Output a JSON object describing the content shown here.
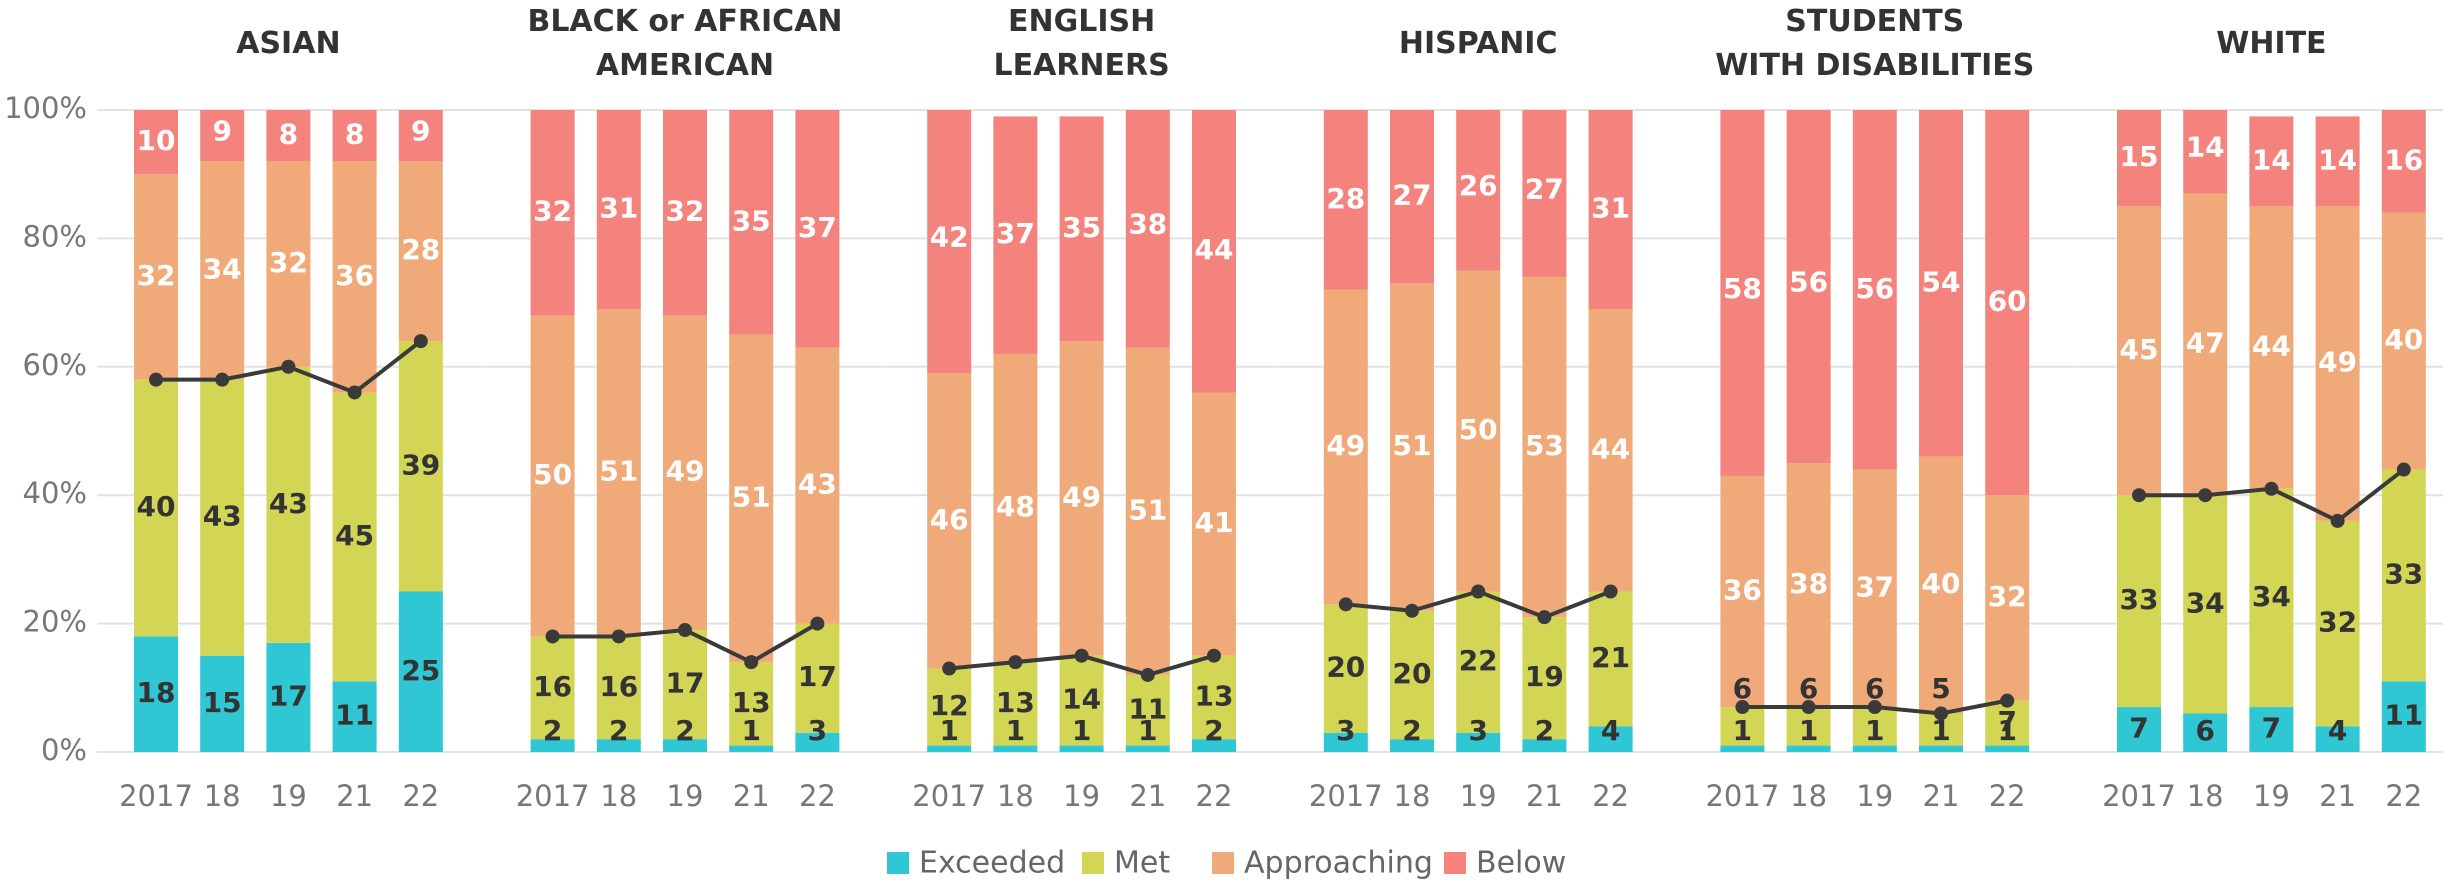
{
  "chart_data": [
    {
      "type": "bar",
      "title": "ASIAN",
      "categories": [
        "2017",
        "18",
        "19",
        "21",
        "22"
      ],
      "ylim": [
        0,
        100
      ],
      "yticks": [
        {
          "value": 0,
          "label": "0%"
        },
        {
          "value": 20,
          "label": "20%"
        },
        {
          "value": 40,
          "label": "40%"
        },
        {
          "value": 60,
          "label": "60%"
        },
        {
          "value": 80,
          "label": "80%"
        },
        {
          "value": 100,
          "label": "100%"
        }
      ],
      "series": [
        {
          "name": "Exceeded",
          "color": "#2ec7d3",
          "values": [
            18,
            15,
            17,
            11,
            25
          ]
        },
        {
          "name": "Met",
          "color": "#d3d655",
          "values": [
            40,
            43,
            43,
            45,
            39
          ]
        },
        {
          "name": "Approaching",
          "color": "#f0aa7a",
          "values": [
            32,
            34,
            32,
            36,
            28
          ]
        },
        {
          "name": "Below",
          "color": "#f4837d",
          "values": [
            10,
            9,
            8,
            8,
            9
          ]
        }
      ]
    },
    {
      "type": "bar",
      "title": "BLACK or AFRICAN\nAMERICAN",
      "categories": [
        "2017",
        "18",
        "19",
        "21",
        "22"
      ],
      "ylim": [
        0,
        100
      ],
      "yticks": [
        {
          "value": 0,
          "label": "0%"
        },
        {
          "value": 20,
          "label": "20%"
        },
        {
          "value": 40,
          "label": "40%"
        },
        {
          "value": 60,
          "label": "60%"
        },
        {
          "value": 80,
          "label": "80%"
        },
        {
          "value": 100,
          "label": "100%"
        }
      ],
      "series": [
        {
          "name": "Exceeded",
          "color": "#2ec7d3",
          "values": [
            2,
            2,
            2,
            1,
            3
          ]
        },
        {
          "name": "Met",
          "color": "#d3d655",
          "values": [
            16,
            16,
            17,
            13,
            17
          ]
        },
        {
          "name": "Approaching",
          "color": "#f0aa7a",
          "values": [
            50,
            51,
            49,
            51,
            43
          ]
        },
        {
          "name": "Below",
          "color": "#f4837d",
          "values": [
            32,
            31,
            32,
            35,
            37
          ]
        }
      ]
    },
    {
      "type": "bar",
      "title": "ENGLISH\nLEARNERS",
      "categories": [
        "2017",
        "18",
        "19",
        "21",
        "22"
      ],
      "ylim": [
        0,
        100
      ],
      "yticks": [
        {
          "value": 0,
          "label": "0%"
        },
        {
          "value": 20,
          "label": "20%"
        },
        {
          "value": 40,
          "label": "40%"
        },
        {
          "value": 60,
          "label": "60%"
        },
        {
          "value": 80,
          "label": "80%"
        },
        {
          "value": 100,
          "label": "100%"
        }
      ],
      "series": [
        {
          "name": "Exceeded",
          "color": "#2ec7d3",
          "values": [
            1,
            1,
            1,
            1,
            2
          ]
        },
        {
          "name": "Met",
          "color": "#d3d655",
          "values": [
            12,
            13,
            14,
            11,
            13
          ]
        },
        {
          "name": "Approaching",
          "color": "#f0aa7a",
          "values": [
            46,
            48,
            49,
            51,
            41
          ]
        },
        {
          "name": "Below",
          "color": "#f4837d",
          "values": [
            42,
            37,
            35,
            38,
            44
          ]
        }
      ]
    },
    {
      "type": "bar",
      "title": "HISPANIC",
      "categories": [
        "2017",
        "18",
        "19",
        "21",
        "22"
      ],
      "ylim": [
        0,
        100
      ],
      "yticks": [
        {
          "value": 0,
          "label": "0%"
        },
        {
          "value": 20,
          "label": "20%"
        },
        {
          "value": 40,
          "label": "40%"
        },
        {
          "value": 60,
          "label": "60%"
        },
        {
          "value": 80,
          "label": "80%"
        },
        {
          "value": 100,
          "label": "100%"
        }
      ],
      "series": [
        {
          "name": "Exceeded",
          "color": "#2ec7d3",
          "values": [
            3,
            2,
            3,
            2,
            4
          ]
        },
        {
          "name": "Met",
          "color": "#d3d655",
          "values": [
            20,
            20,
            22,
            19,
            21
          ]
        },
        {
          "name": "Approaching",
          "color": "#f0aa7a",
          "values": [
            49,
            51,
            50,
            53,
            44
          ]
        },
        {
          "name": "Below",
          "color": "#f4837d",
          "values": [
            28,
            27,
            26,
            27,
            31
          ]
        }
      ]
    },
    {
      "type": "bar",
      "title": "STUDENTS\nWITH DISABILITIES",
      "categories": [
        "2017",
        "18",
        "19",
        "21",
        "22"
      ],
      "ylim": [
        0,
        100
      ],
      "yticks": [
        {
          "value": 0,
          "label": "0%"
        },
        {
          "value": 20,
          "label": "20%"
        },
        {
          "value": 40,
          "label": "40%"
        },
        {
          "value": 60,
          "label": "60%"
        },
        {
          "value": 80,
          "label": "80%"
        },
        {
          "value": 100,
          "label": "100%"
        }
      ],
      "series": [
        {
          "name": "Exceeded",
          "color": "#2ec7d3",
          "values": [
            1,
            1,
            1,
            1,
            1
          ]
        },
        {
          "name": "Met",
          "color": "#d3d655",
          "values": [
            6,
            6,
            6,
            5,
            7
          ]
        },
        {
          "name": "Approaching",
          "color": "#f0aa7a",
          "values": [
            36,
            38,
            37,
            40,
            32
          ]
        },
        {
          "name": "Below",
          "color": "#f4837d",
          "values": [
            58,
            56,
            56,
            54,
            60
          ]
        }
      ]
    },
    {
      "type": "bar",
      "title": "WHITE",
      "categories": [
        "2017",
        "18",
        "19",
        "21",
        "22"
      ],
      "ylim": [
        0,
        100
      ],
      "yticks": [
        {
          "value": 0,
          "label": "0%"
        },
        {
          "value": 20,
          "label": "20%"
        },
        {
          "value": 40,
          "label": "40%"
        },
        {
          "value": 60,
          "label": "60%"
        },
        {
          "value": 80,
          "label": "80%"
        },
        {
          "value": 100,
          "label": "100%"
        }
      ],
      "series": [
        {
          "name": "Exceeded",
          "color": "#2ec7d3",
          "values": [
            7,
            6,
            7,
            4,
            11
          ]
        },
        {
          "name": "Met",
          "color": "#d3d655",
          "values": [
            33,
            34,
            34,
            32,
            33
          ]
        },
        {
          "name": "Approaching",
          "color": "#f0aa7a",
          "values": [
            45,
            47,
            44,
            49,
            40
          ]
        },
        {
          "name": "Below",
          "color": "#f4837d",
          "values": [
            15,
            14,
            14,
            14,
            16
          ]
        }
      ]
    }
  ]
}
